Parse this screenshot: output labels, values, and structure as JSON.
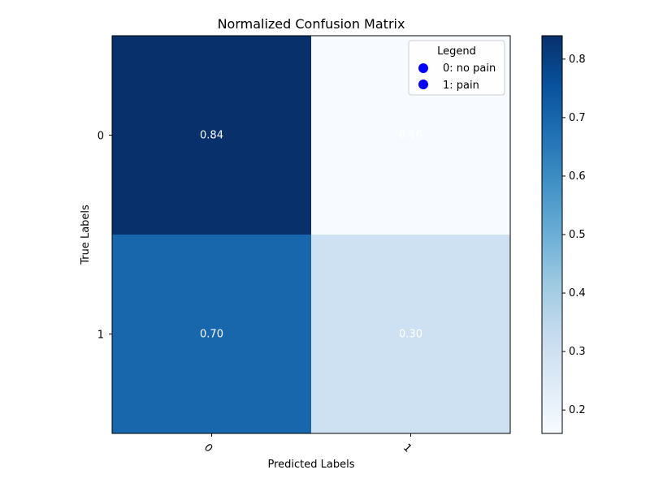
{
  "chart_data": {
    "type": "heatmap",
    "title": "Normalized Confusion Matrix",
    "xlabel": "Predicted Labels",
    "ylabel": "True Labels",
    "x_categories": [
      "0",
      "1"
    ],
    "y_categories": [
      "0",
      "1"
    ],
    "values": [
      [
        0.84,
        0.16
      ],
      [
        0.7,
        0.3
      ]
    ],
    "cell_labels": [
      [
        "0.84",
        "0.16"
      ],
      [
        "0.70",
        "0.30"
      ]
    ],
    "colormap": "Blues",
    "color_range": [
      0.16,
      0.84
    ],
    "colorbar_ticks": [
      "0.2",
      "0.3",
      "0.4",
      "0.5",
      "0.6",
      "0.7",
      "0.8"
    ],
    "legend": {
      "title": "Legend",
      "placement": "top-right",
      "marker_color": "#0000ff",
      "entries": [
        "0: no pain",
        "1: pain"
      ]
    },
    "grid": false
  }
}
